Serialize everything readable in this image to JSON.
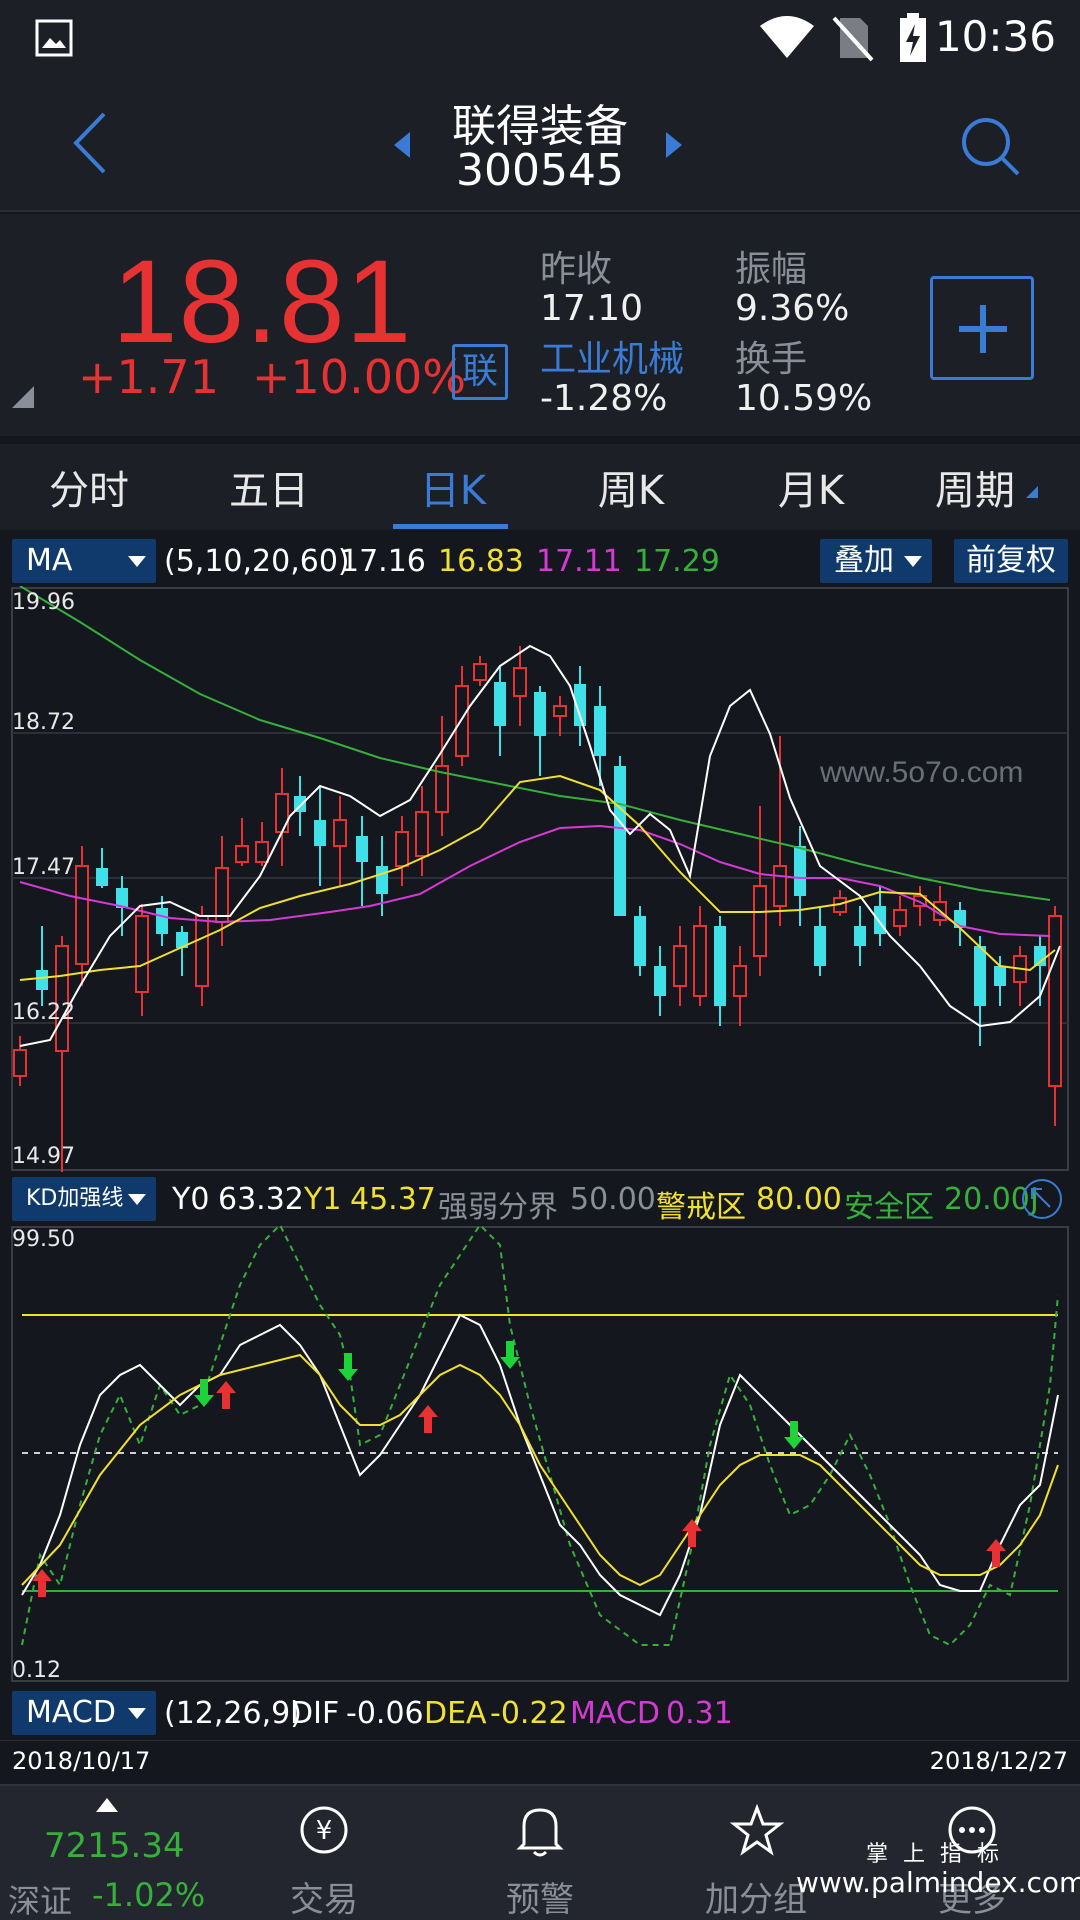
{
  "status_bar": {
    "time": "10:36"
  },
  "header": {
    "stock_name": "联得装备",
    "stock_code": "300545"
  },
  "quote": {
    "price": "18.81",
    "change": "+1.71",
    "change_pct": "+10.00%",
    "badge": "联",
    "prev_close_label": "昨收",
    "prev_close": "17.10",
    "amplitude_label": "振幅",
    "amplitude": "9.36%",
    "sector": "工业机械",
    "sector_change": "-1.28%",
    "turnover_label": "换手",
    "turnover": "10.59%"
  },
  "tabs": [
    {
      "label": "分时"
    },
    {
      "label": "五日"
    },
    {
      "label": "日K"
    },
    {
      "label": "周K"
    },
    {
      "label": "月K"
    },
    {
      "label": "周期"
    }
  ],
  "ma_bar": {
    "dropdown": "MA",
    "params": "(5,10,20,60)",
    "v1": "17.16",
    "v2": "16.83",
    "v3": "17.11",
    "v4": "17.29",
    "overlay_button": "叠加",
    "fq_button": "前复权"
  },
  "main_axis": [
    "19.96",
    "18.72",
    "17.47",
    "16.22",
    "14.97"
  ],
  "watermark": "www.5o7o.com",
  "kd_bar": {
    "dropdown": "KD加强线",
    "y0_label": "Y0",
    "y0": "63.32",
    "y1_label": "Y1",
    "y1": "45.37",
    "mid_label": "强弱分界",
    "mid": "50.00",
    "warn_label": "警戒区",
    "warn": "80.00",
    "safe_label": "安全区",
    "safe": "20.00",
    "trailing": "J"
  },
  "kd_axis": [
    "99.50",
    "0.12"
  ],
  "macd_bar": {
    "dropdown": "MACD",
    "params": "(12,26,9)",
    "dif_label": "DIF",
    "dif": "-0.06",
    "dea_label": "DEA",
    "dea": "-0.22",
    "macd_label": "MACD",
    "macd": "0.31"
  },
  "dates": {
    "start": "2018/10/17",
    "end": "2018/12/27"
  },
  "footer": {
    "index_value": "7215.34",
    "index_name": "深证",
    "index_change": "-1.02%",
    "nav": [
      {
        "label": "交易"
      },
      {
        "label": "预警"
      },
      {
        "label": "加分组"
      },
      {
        "label": "更多"
      }
    ],
    "brand": "掌 上 指 标",
    "brand_url": "www.palmindex.com"
  },
  "colors": {
    "up": "#e63232",
    "down": "#3fe0e8",
    "ma5": "#ffffff",
    "ma10": "#f0e030",
    "ma20": "#d63ad6",
    "ma60": "#36b03a",
    "accent": "#3a7bd5"
  }
}
